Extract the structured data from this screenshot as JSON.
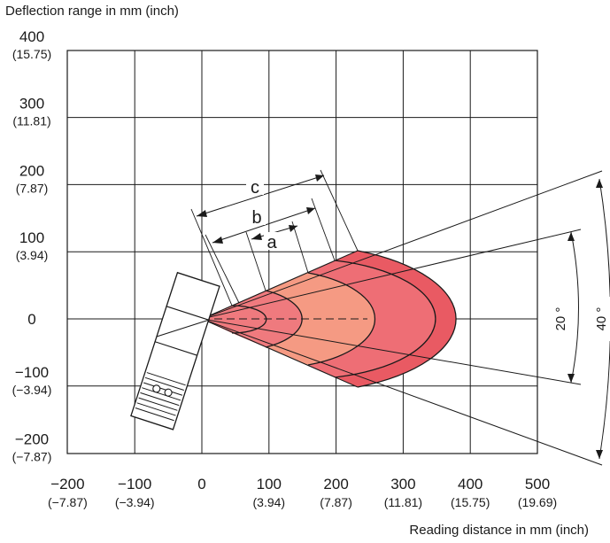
{
  "y_axis_title": "Deflection range in mm (inch)",
  "x_axis_title": "Reading distance in mm (inch)",
  "x_ticks": [
    {
      "mm": "−200",
      "inch": "(−7.87)",
      "value": -200
    },
    {
      "mm": "−100",
      "inch": "(−3.94)",
      "value": -100
    },
    {
      "mm": "0",
      "inch": "",
      "value": 0
    },
    {
      "mm": "100",
      "inch": "(3.94)",
      "value": 100
    },
    {
      "mm": "200",
      "inch": "(7.87)",
      "value": 200
    },
    {
      "mm": "300",
      "inch": "(11.81)",
      "value": 300
    },
    {
      "mm": "400",
      "inch": "(15.75)",
      "value": 400
    },
    {
      "mm": "500",
      "inch": "(19.69)",
      "value": 500
    }
  ],
  "y_ticks": [
    {
      "mm": "400",
      "inch": "(15.75)",
      "value": 400
    },
    {
      "mm": "300",
      "inch": "(11.81)",
      "value": 300
    },
    {
      "mm": "200",
      "inch": "(7.87)",
      "value": 200
    },
    {
      "mm": "100",
      "inch": "(3.94)",
      "value": 100
    },
    {
      "mm": "0",
      "inch": "",
      "value": 0
    },
    {
      "mm": "−100",
      "inch": "(−3.94)",
      "value": -100
    },
    {
      "mm": "−200",
      "inch": "(−7.87)",
      "value": -200
    }
  ],
  "dimension_labels": {
    "a": "a",
    "b": "b",
    "c": "c"
  },
  "angle_labels": {
    "inner": "20 °",
    "outer": "40 °"
  },
  "colors": {
    "grid": "#1a1a1a",
    "band1": "#ef7a7e",
    "band2": "#f59a83",
    "band3": "#ee6e75",
    "band4": "#e95a63",
    "sensor_fill": "#ffffff"
  }
}
